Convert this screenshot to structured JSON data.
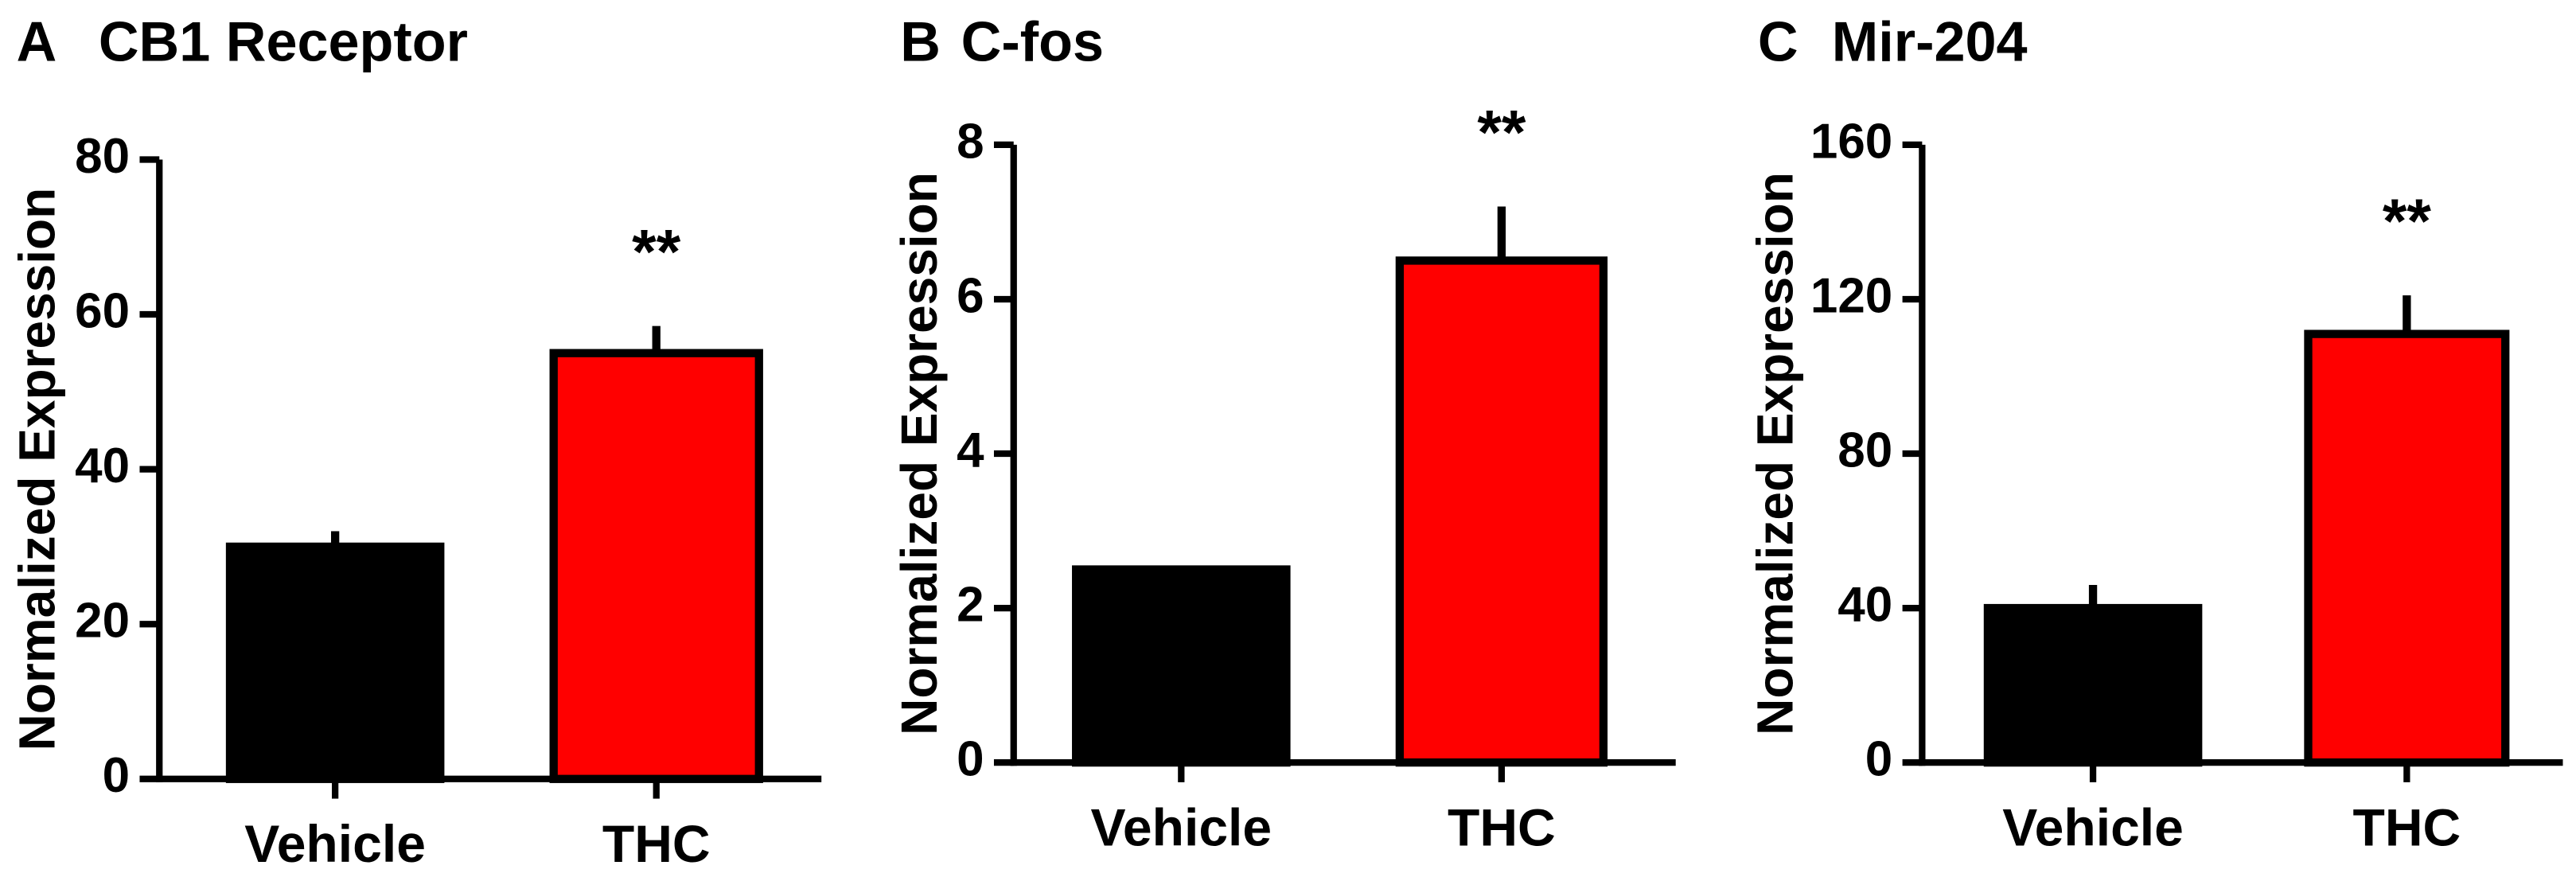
{
  "chart_data": [
    {
      "type": "bar",
      "panel": "A",
      "title": "CB1 Receptor",
      "ylabel": "Normalized Expression",
      "categories": [
        "Vehicle",
        "THC"
      ],
      "values": [
        30,
        55
      ],
      "errors": [
        2,
        3.5
      ],
      "colors": [
        "#000000",
        "#ff0000"
      ],
      "annotation": "**",
      "ylim": [
        0,
        80
      ],
      "yticks": [
        0,
        20,
        40,
        60,
        80
      ]
    },
    {
      "type": "bar",
      "panel": "B",
      "title": "C-fos",
      "ylabel": "Normalized Expression",
      "categories": [
        "Vehicle",
        "THC"
      ],
      "values": [
        2.5,
        6.5
      ],
      "errors": [
        0.05,
        0.7
      ],
      "colors": [
        "#000000",
        "#ff0000"
      ],
      "annotation": "**",
      "ylim": [
        0,
        8
      ],
      "yticks": [
        0,
        2,
        4,
        6,
        8
      ]
    },
    {
      "type": "bar",
      "panel": "C",
      "title": "Mir-204",
      "ylabel": "Normalized Expression",
      "categories": [
        "Vehicle",
        "THC"
      ],
      "values": [
        40,
        111
      ],
      "errors": [
        6,
        10
      ],
      "colors": [
        "#000000",
        "#ff0000"
      ],
      "annotation": "**",
      "ylim": [
        0,
        160
      ],
      "yticks": [
        0,
        40,
        80,
        120,
        160
      ]
    }
  ]
}
